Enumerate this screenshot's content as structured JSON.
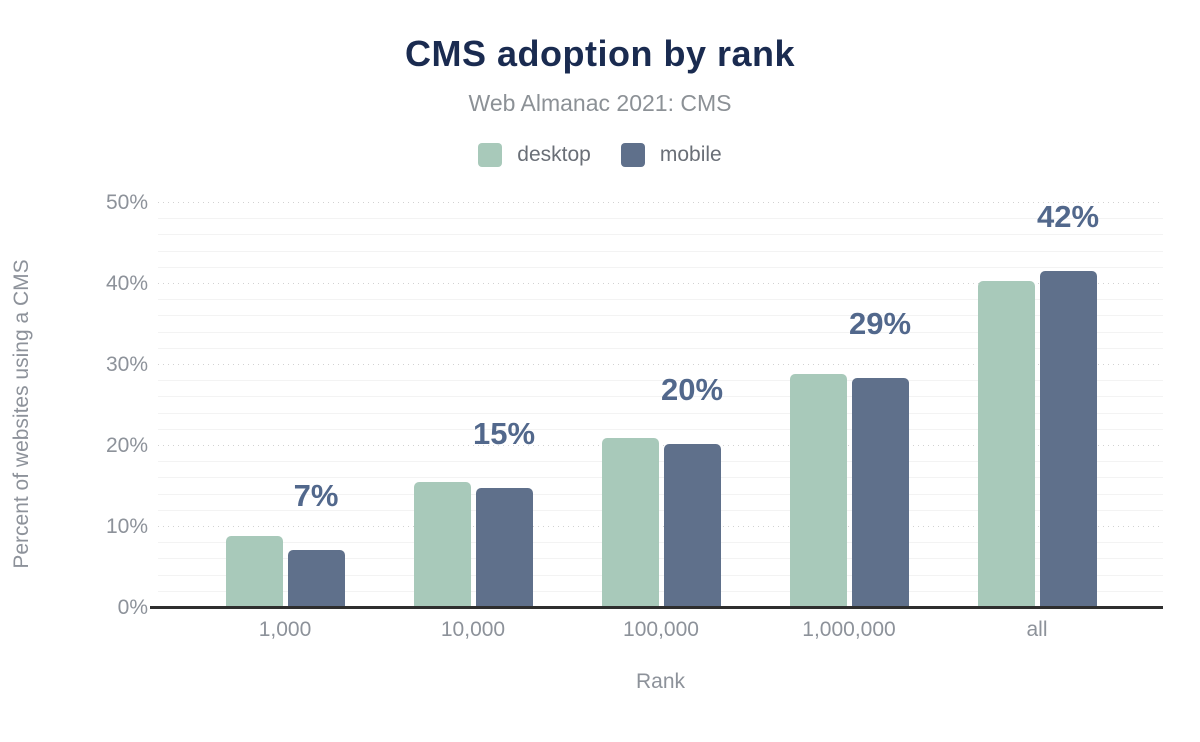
{
  "title": "CMS adoption by rank",
  "subtitle": "Web Almanac 2021: CMS",
  "chart_data": {
    "type": "bar",
    "title": "CMS adoption by rank",
    "subtitle": "Web Almanac 2021: CMS",
    "categories": [
      "1,000",
      "10,000",
      "100,000",
      "1,000,000",
      "all"
    ],
    "series": [
      {
        "name": "desktop",
        "color": "#a8c9ba",
        "values": [
          8.9,
          15.5,
          21.0,
          28.9,
          40.4
        ]
      },
      {
        "name": "mobile",
        "color": "#5f708b",
        "values": [
          7.2,
          14.8,
          20.3,
          28.4,
          41.6
        ]
      }
    ],
    "bar_labels": [
      "7%",
      "15%",
      "20%",
      "29%",
      "42%"
    ],
    "xlabel": "Rank",
    "ylabel": "Percent of websites using a CMS",
    "ylim": [
      0,
      50
    ],
    "ytick_labels": [
      "0%",
      "10%",
      "20%",
      "30%",
      "40%",
      "50%"
    ],
    "ytick_step_major": 10,
    "ytick_step_minor": 2,
    "grid": "horizontal-major-dotted-minor-solid",
    "legend_position": "top-center"
  },
  "colors": {
    "title": "#1a2b50",
    "subtitle": "#8c9196",
    "axis_text": "#8d929a",
    "legend_text": "#6a6f77",
    "data_label": "#52688c",
    "desktop_bar": "#a8c9ba",
    "mobile_bar": "#5f708b",
    "baseline": "#2e2e2e",
    "grid_major": "#d2d2d2",
    "grid_minor": "#f3f3f3",
    "background": "#ffffff"
  }
}
